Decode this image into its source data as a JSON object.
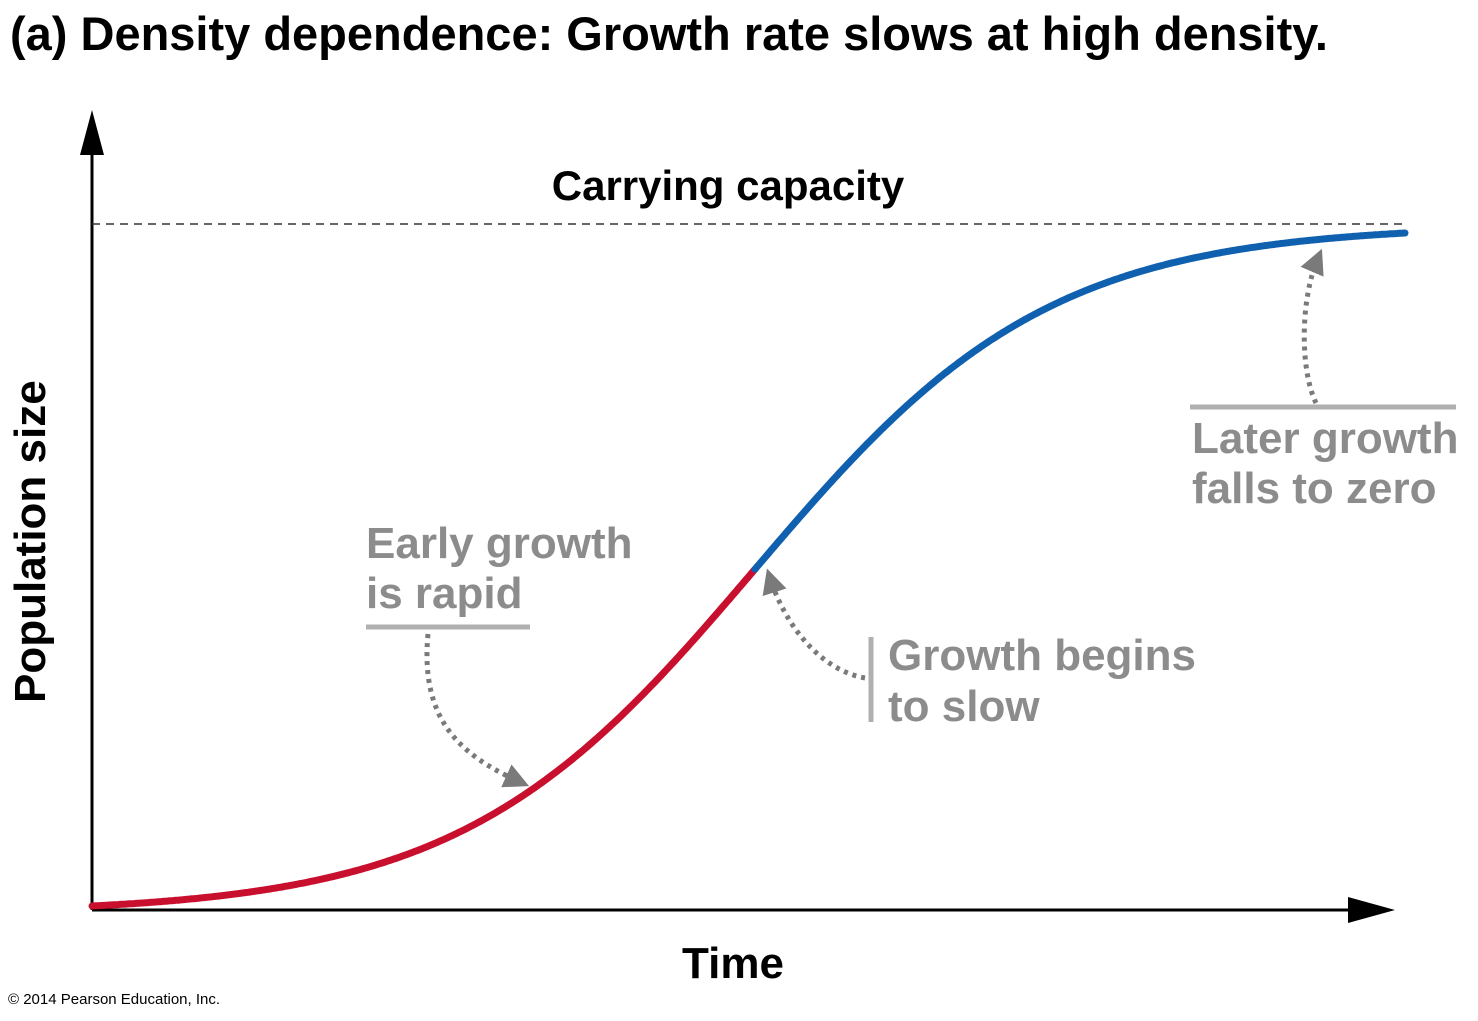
{
  "title": "(a) Density dependence: Growth rate slows at high density.",
  "axes": {
    "y_label": "Population size",
    "x_label": "Time"
  },
  "carrying_capacity": {
    "label": "Carrying capacity"
  },
  "annotations": {
    "early": {
      "line1": "Early growth",
      "line2": "is rapid"
    },
    "middle": {
      "line1": "Growth begins",
      "line2": "to slow"
    },
    "later": {
      "line1": "Later growth",
      "line2": "falls to zero"
    }
  },
  "colors": {
    "early_curve": "#c8102e",
    "late_curve": "#1060b0",
    "annotation": "#8c8c8c",
    "axis": "#000000"
  },
  "copyright": "© 2014 Pearson Education, Inc."
}
